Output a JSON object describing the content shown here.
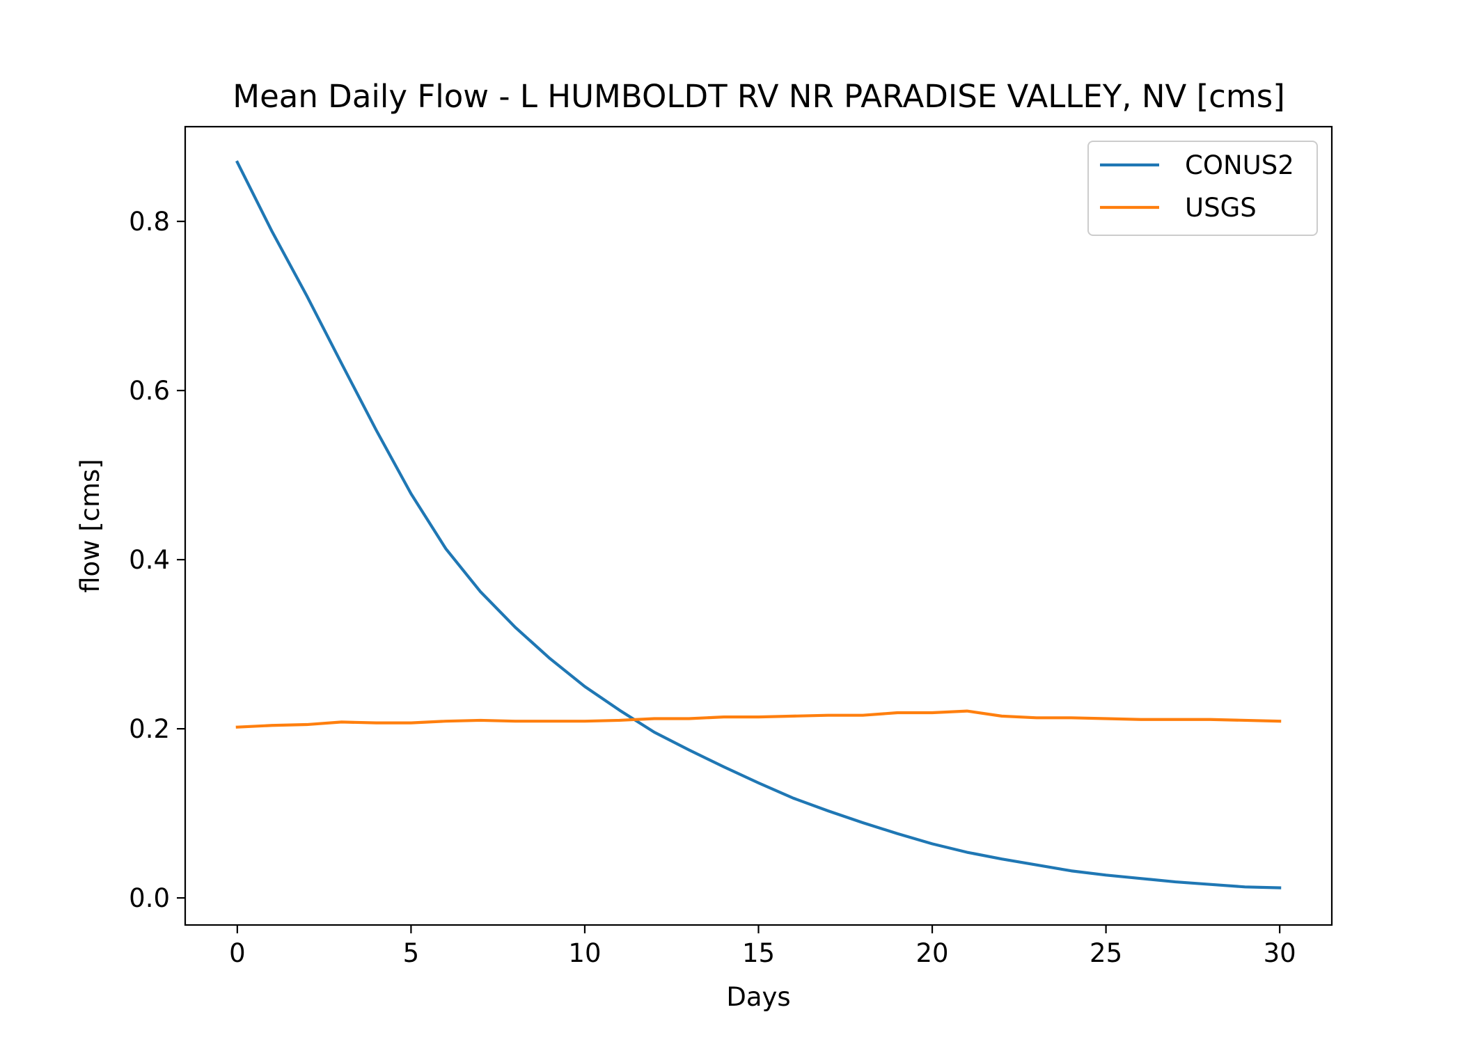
{
  "chart_data": {
    "type": "line",
    "title": "Mean Daily Flow - L HUMBOLDT RV NR PARADISE VALLEY, NV [cms]",
    "xlabel": "Days",
    "ylabel": "flow [cms]",
    "xlim": [
      -1.5,
      31.5
    ],
    "ylim": [
      -0.032,
      0.912
    ],
    "xticks": [
      0,
      5,
      10,
      15,
      20,
      25,
      30
    ],
    "xtick_labels": [
      "0",
      "5",
      "10",
      "15",
      "20",
      "25",
      "30"
    ],
    "yticks": [
      0.0,
      0.2,
      0.4,
      0.6,
      0.8
    ],
    "ytick_labels": [
      "0.0",
      "0.2",
      "0.4",
      "0.6",
      "0.8"
    ],
    "grid": false,
    "legend_position": "top-right",
    "x": [
      0,
      1,
      2,
      3,
      4,
      5,
      6,
      7,
      8,
      9,
      10,
      11,
      12,
      13,
      14,
      15,
      16,
      17,
      18,
      19,
      20,
      21,
      22,
      23,
      24,
      25,
      26,
      27,
      28,
      29,
      30
    ],
    "series": [
      {
        "name": "CONUS2",
        "color": "#1f77b4",
        "values": [
          0.87,
          0.788,
          0.712,
          0.632,
          0.553,
          0.478,
          0.413,
          0.362,
          0.32,
          0.283,
          0.25,
          0.222,
          0.196,
          0.175,
          0.155,
          0.136,
          0.118,
          0.103,
          0.089,
          0.076,
          0.064,
          0.054,
          0.046,
          0.039,
          0.032,
          0.027,
          0.023,
          0.019,
          0.016,
          0.013,
          0.012
        ]
      },
      {
        "name": "USGS",
        "color": "#ff7f0e",
        "values": [
          0.202,
          0.204,
          0.205,
          0.208,
          0.207,
          0.207,
          0.209,
          0.21,
          0.209,
          0.209,
          0.209,
          0.21,
          0.212,
          0.212,
          0.214,
          0.214,
          0.215,
          0.216,
          0.216,
          0.219,
          0.219,
          0.221,
          0.215,
          0.213,
          0.213,
          0.212,
          0.211,
          0.211,
          0.211,
          0.21,
          0.209
        ]
      }
    ]
  }
}
